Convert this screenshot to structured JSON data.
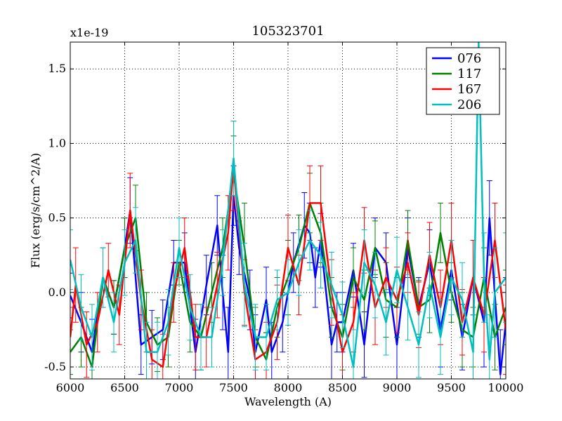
{
  "chart_data": {
    "type": "line",
    "title": "105323701",
    "xlabel": "Wavelength (A)",
    "ylabel": "Flux (erg/s/cm^2/A)",
    "offset_text": "x1e-19",
    "xlim": [
      6000,
      10000
    ],
    "ylim": [
      -0.58,
      1.68
    ],
    "grid": true,
    "legend_position": "top-right",
    "x_ticks": [
      6000,
      6500,
      7000,
      7500,
      8000,
      8500,
      9000,
      9500,
      10000
    ],
    "x_tick_labels": [
      "6000",
      "6500",
      "7000",
      "7500",
      "8000",
      "8500",
      "9000",
      "9500",
      "10000"
    ],
    "y_ticks": [
      -0.5,
      0.0,
      0.5,
      1.0,
      1.5
    ],
    "y_tick_labels": [
      "-0.5",
      "0.0",
      "0.5",
      "1.0",
      "1.5"
    ],
    "series": [
      {
        "name": "076",
        "color": "#0000ff",
        "points": [
          [
            6000,
            -0.02
          ],
          [
            6100,
            -0.2
          ],
          [
            6200,
            -0.4
          ],
          [
            6300,
            0.1
          ],
          [
            6400,
            -0.1
          ],
          [
            6500,
            0.3
          ],
          [
            6550,
            0.55
          ],
          [
            6650,
            -0.35
          ],
          [
            6750,
            -0.3
          ],
          [
            6850,
            -0.25
          ],
          [
            6950,
            0.2
          ],
          [
            7050,
            0.2
          ],
          [
            7150,
            -0.4
          ],
          [
            7250,
            0.05
          ],
          [
            7350,
            0.45
          ],
          [
            7400,
            0.0
          ],
          [
            7450,
            -0.4
          ],
          [
            7500,
            0.65
          ],
          [
            7550,
            0.3
          ],
          [
            7650,
            -0.05
          ],
          [
            7700,
            -0.4
          ],
          [
            7800,
            -0.05
          ],
          [
            7850,
            -0.4
          ],
          [
            7950,
            -0.2
          ],
          [
            8050,
            0.2
          ],
          [
            8150,
            0.45
          ],
          [
            8200,
            0.4
          ],
          [
            8250,
            0.1
          ],
          [
            8300,
            0.35
          ],
          [
            8400,
            -0.35
          ],
          [
            8450,
            -0.2
          ],
          [
            8500,
            -0.2
          ],
          [
            8600,
            0.15
          ],
          [
            8700,
            -0.35
          ],
          [
            8800,
            0.3
          ],
          [
            8900,
            0.2
          ],
          [
            9000,
            -0.35
          ],
          [
            9100,
            0.3
          ],
          [
            9200,
            -0.1
          ],
          [
            9300,
            0.2
          ],
          [
            9400,
            -0.25
          ],
          [
            9500,
            0.15
          ],
          [
            9600,
            -0.3
          ],
          [
            9700,
            0.1
          ],
          [
            9800,
            -0.2
          ],
          [
            9850,
            0.5
          ],
          [
            9950,
            -0.55
          ],
          [
            10000,
            -0.2
          ]
        ],
        "errors": [
          0.15,
          0.2,
          0.22,
          0.2,
          0.18,
          0.2,
          0.22,
          0.2,
          0.18,
          0.2,
          0.15,
          0.2,
          0.22,
          0.2,
          0.2,
          0.25,
          0.3,
          0.2,
          0.18,
          0.2,
          0.25,
          0.22,
          0.2,
          0.2,
          0.2,
          0.22,
          0.2,
          0.2,
          0.18,
          0.25,
          0.2,
          0.2,
          0.18,
          0.22,
          0.2,
          0.2,
          0.25,
          0.2,
          0.2,
          0.22,
          0.25,
          0.2,
          0.22,
          0.25,
          0.3,
          0.25,
          0.3,
          0.3
        ]
      },
      {
        "name": "117",
        "color": "#008000",
        "points": [
          [
            6000,
            -0.4
          ],
          [
            6100,
            -0.3
          ],
          [
            6200,
            -0.5
          ],
          [
            6300,
            0.1
          ],
          [
            6400,
            -0.1
          ],
          [
            6500,
            0.3
          ],
          [
            6600,
            0.5
          ],
          [
            6700,
            -0.2
          ],
          [
            6800,
            -0.35
          ],
          [
            6900,
            -0.3
          ],
          [
            7000,
            0.2
          ],
          [
            7100,
            -0.2
          ],
          [
            7200,
            -0.3
          ],
          [
            7300,
            0.0
          ],
          [
            7400,
            0.3
          ],
          [
            7500,
            0.8
          ],
          [
            7600,
            0.3
          ],
          [
            7700,
            -0.3
          ],
          [
            7800,
            -0.45
          ],
          [
            7900,
            -0.1
          ],
          [
            8000,
            0.1
          ],
          [
            8100,
            0.3
          ],
          [
            8200,
            0.6
          ],
          [
            8300,
            0.4
          ],
          [
            8400,
            -0.1
          ],
          [
            8500,
            -0.3
          ],
          [
            8600,
            0.1
          ],
          [
            8700,
            -0.05
          ],
          [
            8800,
            0.3
          ],
          [
            8900,
            -0.05
          ],
          [
            9000,
            -0.1
          ],
          [
            9100,
            0.35
          ],
          [
            9200,
            -0.1
          ],
          [
            9300,
            -0.05
          ],
          [
            9400,
            0.4
          ],
          [
            9500,
            0.0
          ],
          [
            9600,
            -0.25
          ],
          [
            9700,
            -0.3
          ],
          [
            9800,
            0.1
          ],
          [
            9900,
            -0.3
          ],
          [
            10000,
            -0.1
          ]
        ],
        "errors": [
          0.15,
          0.2,
          0.22,
          0.2,
          0.18,
          0.2,
          0.22,
          0.2,
          0.18,
          0.2,
          0.15,
          0.2,
          0.22,
          0.2,
          0.2,
          0.25,
          0.3,
          0.2,
          0.18,
          0.2,
          0.25,
          0.22,
          0.2,
          0.2,
          0.2,
          0.22,
          0.2,
          0.2,
          0.18,
          0.25,
          0.2,
          0.2,
          0.18,
          0.22,
          0.2,
          0.2,
          0.25,
          0.2,
          0.2,
          0.22,
          0.25
        ]
      },
      {
        "name": "167",
        "color": "#ff0000",
        "points": [
          [
            6000,
            -0.3
          ],
          [
            6050,
            0.05
          ],
          [
            6150,
            -0.35
          ],
          [
            6250,
            -0.2
          ],
          [
            6350,
            0.15
          ],
          [
            6450,
            -0.15
          ],
          [
            6550,
            0.55
          ],
          [
            6650,
            -0.05
          ],
          [
            6750,
            -0.45
          ],
          [
            6850,
            -0.5
          ],
          [
            6950,
            0.0
          ],
          [
            7050,
            0.3
          ],
          [
            7150,
            -0.3
          ],
          [
            7250,
            -0.3
          ],
          [
            7350,
            0.05
          ],
          [
            7450,
            0.4
          ],
          [
            7500,
            0.85
          ],
          [
            7600,
            0.0
          ],
          [
            7700,
            -0.45
          ],
          [
            7800,
            -0.4
          ],
          [
            7900,
            -0.2
          ],
          [
            8000,
            0.3
          ],
          [
            8100,
            0.05
          ],
          [
            8200,
            0.6
          ],
          [
            8300,
            0.6
          ],
          [
            8400,
            0.0
          ],
          [
            8500,
            -0.4
          ],
          [
            8600,
            -0.2
          ],
          [
            8700,
            0.35
          ],
          [
            8800,
            -0.1
          ],
          [
            8900,
            0.1
          ],
          [
            9000,
            -0.05
          ],
          [
            9100,
            0.2
          ],
          [
            9200,
            -0.15
          ],
          [
            9300,
            0.25
          ],
          [
            9400,
            -0.1
          ],
          [
            9500,
            0.35
          ],
          [
            9600,
            -0.2
          ],
          [
            9700,
            0.1
          ],
          [
            9800,
            -0.15
          ],
          [
            9900,
            0.35
          ],
          [
            10000,
            -0.25
          ]
        ],
        "errors": [
          0.2,
          0.25,
          0.22,
          0.2,
          0.18,
          0.2,
          0.25,
          0.2,
          0.2,
          0.22,
          0.2,
          0.2,
          0.22,
          0.2,
          0.22,
          0.25,
          0.3,
          0.22,
          0.2,
          0.2,
          0.25,
          0.22,
          0.2,
          0.25,
          0.25,
          0.22,
          0.25,
          0.2,
          0.22,
          0.25,
          0.2,
          0.22,
          0.2,
          0.22,
          0.22,
          0.25,
          0.25,
          0.22,
          0.25,
          0.25,
          0.25,
          0.3
        ]
      },
      {
        "name": "206",
        "color": "#00bfbf",
        "points": [
          [
            6000,
            0.22
          ],
          [
            6100,
            -0.1
          ],
          [
            6200,
            -0.3
          ],
          [
            6300,
            0.1
          ],
          [
            6400,
            -0.2
          ],
          [
            6500,
            0.2
          ],
          [
            6600,
            0.35
          ],
          [
            6700,
            -0.4
          ],
          [
            6800,
            -0.4
          ],
          [
            6900,
            -0.2
          ],
          [
            7000,
            0.3
          ],
          [
            7100,
            -0.1
          ],
          [
            7200,
            -0.3
          ],
          [
            7300,
            -0.3
          ],
          [
            7400,
            0.2
          ],
          [
            7500,
            0.9
          ],
          [
            7600,
            0.05
          ],
          [
            7700,
            -0.3
          ],
          [
            7800,
            -0.3
          ],
          [
            7900,
            -0.05
          ],
          [
            8000,
            0.0
          ],
          [
            8100,
            0.2
          ],
          [
            8200,
            0.35
          ],
          [
            8300,
            0.25
          ],
          [
            8400,
            0.05
          ],
          [
            8500,
            -0.15
          ],
          [
            8600,
            -0.5
          ],
          [
            8700,
            0.2
          ],
          [
            8800,
            0.05
          ],
          [
            8900,
            -0.2
          ],
          [
            9000,
            0.15
          ],
          [
            9100,
            -0.1
          ],
          [
            9200,
            -0.35
          ],
          [
            9300,
            0.05
          ],
          [
            9400,
            -0.3
          ],
          [
            9500,
            0.1
          ],
          [
            9600,
            -0.05
          ],
          [
            9700,
            -0.4
          ],
          [
            9750,
            1.68
          ],
          [
            9800,
            0.1
          ],
          [
            9850,
            -0.45
          ],
          [
            9900,
            0.0
          ],
          [
            10000,
            0.1
          ]
        ],
        "errors": [
          0.2,
          0.22,
          0.22,
          0.2,
          0.2,
          0.22,
          0.22,
          0.2,
          0.2,
          0.22,
          0.2,
          0.22,
          0.22,
          0.2,
          0.22,
          0.25,
          0.28,
          0.22,
          0.22,
          0.2,
          0.22,
          0.22,
          0.2,
          0.22,
          0.22,
          0.22,
          0.25,
          0.22,
          0.22,
          0.22,
          0.22,
          0.22,
          0.22,
          0.22,
          0.25,
          0.25,
          0.25,
          0.25,
          0.4,
          0.3,
          0.3,
          0.3,
          0.3
        ]
      }
    ]
  }
}
